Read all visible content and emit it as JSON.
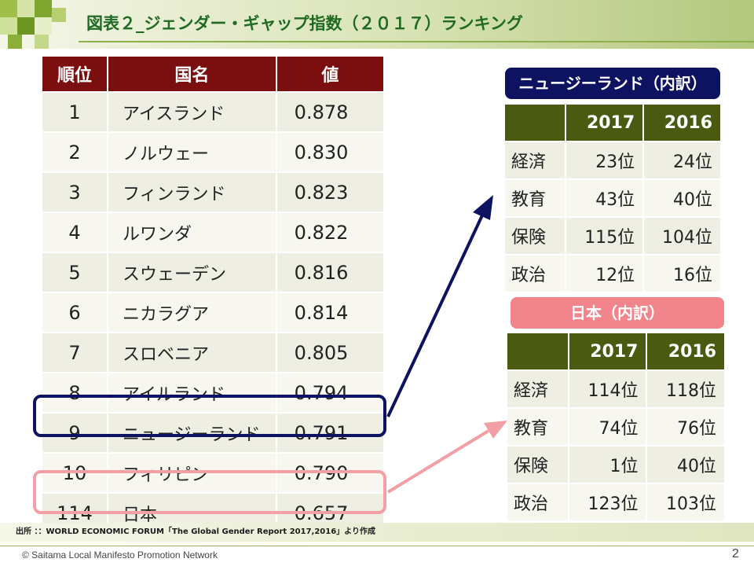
{
  "slide": {
    "title": "図表２_ジェンダー・ギャップ指数（２０１７）ランキング",
    "source": "出所 ：：WORLD ECONOMIC FORUM「The Global Gender Report 2017,2016」より作成",
    "copyright": "© Saitama Local Manifesto Promotion Network",
    "page_number": "2"
  },
  "ranking": {
    "headers": [
      "順位",
      "国名",
      "値"
    ],
    "rows": [
      {
        "rank": "1",
        "country": "アイスランド",
        "value": "0.878"
      },
      {
        "rank": "2",
        "country": "ノルウェー",
        "value": "0.830"
      },
      {
        "rank": "3",
        "country": "フィンランド",
        "value": "0.823"
      },
      {
        "rank": "4",
        "country": "ルワンダ",
        "value": "0.822"
      },
      {
        "rank": "5",
        "country": "スウェーデン",
        "value": "0.816"
      },
      {
        "rank": "6",
        "country": "ニカラグア",
        "value": "0.814"
      },
      {
        "rank": "7",
        "country": "スロベニア",
        "value": "0.805"
      },
      {
        "rank": "8",
        "country": "アイルランド",
        "value": "0.794"
      },
      {
        "rank": "9",
        "country": "ニュージーランド",
        "value": "0.791"
      },
      {
        "rank": "10",
        "country": "フィリピン",
        "value": "0.790"
      },
      {
        "rank": "114",
        "country": "日本",
        "value": "0.657"
      }
    ]
  },
  "nz_breakdown": {
    "label": "ニュージーランド（内訳）",
    "headers": [
      "",
      "2017",
      "2016"
    ],
    "rows": [
      {
        "category": "経済",
        "y2017": "23位",
        "y2016": "24位"
      },
      {
        "category": "教育",
        "y2017": "43位",
        "y2016": "40位"
      },
      {
        "category": "保険",
        "y2017": "115位",
        "y2016": "104位"
      },
      {
        "category": "政治",
        "y2017": "12位",
        "y2016": "16位"
      }
    ]
  },
  "jp_breakdown": {
    "label": "日本（内訳）",
    "headers": [
      "",
      "2017",
      "2016"
    ],
    "rows": [
      {
        "category": "経済",
        "y2017": "114位",
        "y2016": "118位"
      },
      {
        "category": "教育",
        "y2017": "74位",
        "y2016": "76位"
      },
      {
        "category": "保険",
        "y2017": "1位",
        "y2016": "40位"
      },
      {
        "category": "政治",
        "y2017": "123位",
        "y2016": "103位"
      }
    ]
  },
  "colors": {
    "ranking_header": "#7b0e0e",
    "breakdown_header": "#4a5a10",
    "nz_highlight": "#0d1360",
    "jp_highlight": "#f2a0a6",
    "title_text": "#1f6b23"
  }
}
